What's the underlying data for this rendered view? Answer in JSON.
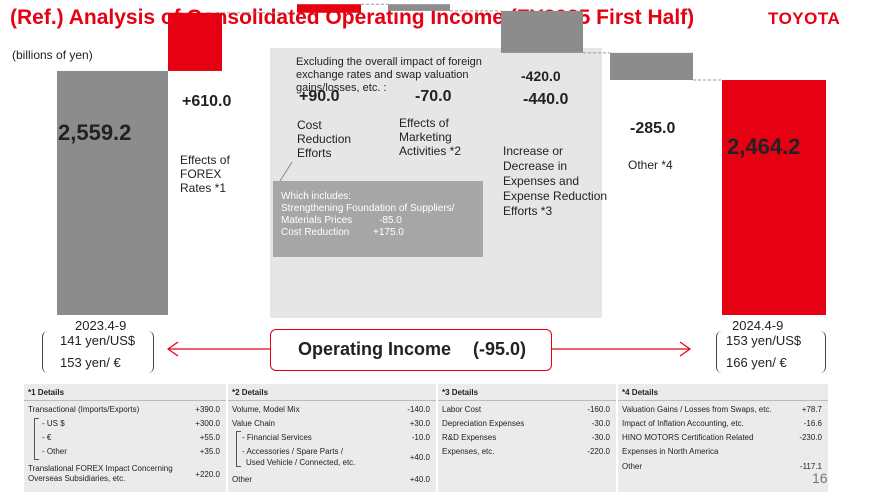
{
  "header": {
    "title": "(Ref.) Analysis of Consolidated Operating Income (FY2025 First Half)",
    "brand": "TOYOTA",
    "unit": "(billions of yen)",
    "page_number": "16"
  },
  "colors": {
    "accent_red": "#e60012",
    "gray_bar": "#8c8c8c",
    "highlight_bg": "#e6e6e6",
    "info_box": "#a6a6a6"
  },
  "chart_data": {
    "type": "waterfall",
    "ylim": [
      0,
      2800
    ],
    "bars": [
      {
        "key": "start",
        "label": "2023.4-9",
        "value": 2559.2,
        "value_label": "2,559.2",
        "kind": "total"
      },
      {
        "key": "forex",
        "label": "Effects of FOREX Rates *1",
        "value": 610.0,
        "value_label": "+610.0",
        "kind": "increase"
      },
      {
        "key": "cost_reduction",
        "label": "Cost Reduction Efforts",
        "value": 90.0,
        "value_label": "+90.0",
        "kind": "increase"
      },
      {
        "key": "marketing",
        "label": "Effects of Marketing Activities *2",
        "value": -70.0,
        "value_label": "-70.0",
        "kind": "decrease"
      },
      {
        "key": "expenses",
        "label": "Increase or Decrease in Expenses and Expense Reduction Efforts *3",
        "value": -440.0,
        "value_label": "-440.0",
        "kind": "decrease"
      },
      {
        "key": "other",
        "label": "Other *4",
        "value": -285.0,
        "value_label": "-285.0",
        "kind": "decrease"
      },
      {
        "key": "end",
        "label": "2024.4-9",
        "value": 2464.2,
        "value_label": "2,464.2",
        "kind": "total"
      }
    ],
    "excluding_note": "Excluding the overall impact of foreign exchange rates and swap valuation gains/losses, etc. :",
    "excluding_value": "-420.0",
    "includes_box": {
      "title": "Which includes:",
      "items": [
        {
          "label": "Strengthening Foundation of Suppliers/ Materials Prices",
          "value": "-85.0"
        },
        {
          "label": "Cost Reduction",
          "value": "+175.0"
        }
      ]
    }
  },
  "labels": {
    "forex": [
      "Effects of",
      "FOREX",
      "Rates *1"
    ],
    "cost": [
      "Cost",
      "Reduction",
      "Efforts"
    ],
    "marketing": [
      "Effects of",
      "Marketing",
      "Activities *2"
    ],
    "expenses": [
      "Increase or",
      "Decrease in",
      "Expenses and",
      "Expense Reduction",
      "Efforts *3"
    ],
    "other": [
      "Other *4"
    ],
    "includes_line1": "Strengthening Foundation of Suppliers/",
    "includes_line2": "Materials Prices"
  },
  "footer": {
    "operating_income_label": "Operating Income",
    "operating_income_value": "(-95.0)",
    "left_period": "2023.4-9",
    "left_usd": "141 yen/US$",
    "left_eur": "153 yen/ €",
    "right_period": "2024.4-9",
    "right_usd": "153 yen/US$",
    "right_eur": "166 yen/ €"
  },
  "details": {
    "d1": {
      "title": "*1 Details",
      "rows": [
        {
          "label": "Transactional (Imports/Exports)",
          "value": "+390.0"
        },
        {
          "label": "- US $",
          "value": "+300.0"
        },
        {
          "label": "- €",
          "value": "+55.0"
        },
        {
          "label": "- Other",
          "value": "+35.0"
        },
        {
          "label": "Translational FOREX Impact Concerning",
          "value": "+220.0"
        },
        {
          "label": "Overseas Subsidiaries, etc.",
          "value": ""
        }
      ]
    },
    "d2": {
      "title": "*2 Details",
      "rows": [
        {
          "label": "Volume, Model Mix",
          "value": "-140.0"
        },
        {
          "label": "Value Chain",
          "value": "+30.0"
        },
        {
          "label": "- Financial Services",
          "value": "-10.0"
        },
        {
          "label": "- Accessories / Spare Parts /",
          "value": "+40.0"
        },
        {
          "label": "Used Vehicle / Connected, etc.",
          "value": ""
        },
        {
          "label": "Other",
          "value": "+40.0"
        }
      ]
    },
    "d3": {
      "title": "*3 Details",
      "rows": [
        {
          "label": "Labor Cost",
          "value": "-160.0"
        },
        {
          "label": "Depreciation Expenses",
          "value": "-30.0"
        },
        {
          "label": "R&D Expenses",
          "value": "-30.0"
        },
        {
          "label": "Expenses, etc.",
          "value": "-220.0"
        }
      ]
    },
    "d4": {
      "title": "*4 Details",
      "rows": [
        {
          "label": "Valuation Gains / Losses from Swaps, etc.",
          "value": "+78.7"
        },
        {
          "label": "Impact of Inflation Accounting, etc.",
          "value": "-16.6"
        },
        {
          "label": "HINO MOTORS Certification Related",
          "value": "-230.0"
        },
        {
          "label": "Expenses in North America",
          "value": ""
        },
        {
          "label": "Other",
          "value": "-117.1"
        }
      ]
    }
  }
}
